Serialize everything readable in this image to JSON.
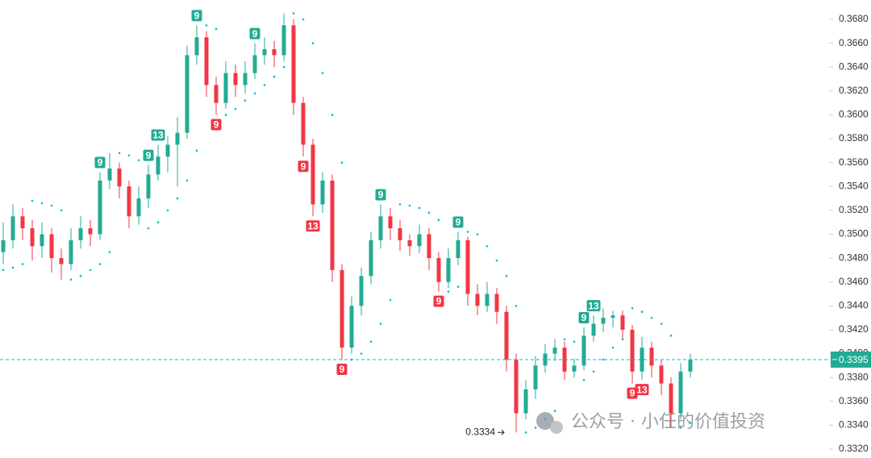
{
  "chart_data": {
    "type": "candlestick",
    "open": [
      0.3485,
      0.3495,
      0.3515,
      0.3505,
      0.349,
      0.35,
      0.348,
      0.3475,
      0.3495,
      0.3505,
      0.35,
      0.3545,
      0.3555,
      0.354,
      0.3515,
      0.353,
      0.355,
      0.3565,
      0.3575,
      0.3585,
      0.365,
      0.3665,
      0.3625,
      0.361,
      0.3635,
      0.3625,
      0.3635,
      0.365,
      0.3655,
      0.365,
      0.3675,
      0.361,
      0.3575,
      0.3525,
      0.3545,
      0.347,
      0.3405,
      0.344,
      0.3465,
      0.3495,
      0.3515,
      0.3505,
      0.3495,
      0.349,
      0.35,
      0.348,
      0.346,
      0.348,
      0.3495,
      0.345,
      0.344,
      0.345,
      0.3435,
      0.3395,
      0.335,
      0.337,
      0.339,
      0.34,
      0.3405,
      0.3385,
      0.339,
      0.3415,
      0.3425,
      0.343,
      0.3432,
      0.342,
      0.3385,
      0.3405,
      0.339,
      0.3375,
      0.335,
      0.3385
    ],
    "high": [
      0.351,
      0.3525,
      0.3522,
      0.3512,
      0.351,
      0.3505,
      0.3488,
      0.3505,
      0.3515,
      0.3512,
      0.3552,
      0.3568,
      0.356,
      0.3545,
      0.354,
      0.3558,
      0.3575,
      0.3582,
      0.3598,
      0.3658,
      0.3675,
      0.367,
      0.3632,
      0.3645,
      0.3642,
      0.3645,
      0.366,
      0.3665,
      0.3662,
      0.3685,
      0.368,
      0.3615,
      0.358,
      0.3552,
      0.355,
      0.3475,
      0.3448,
      0.3472,
      0.3502,
      0.3525,
      0.3522,
      0.3512,
      0.35,
      0.3508,
      0.3505,
      0.3485,
      0.3488,
      0.3502,
      0.3498,
      0.3458,
      0.346,
      0.3455,
      0.344,
      0.34,
      0.3378,
      0.3398,
      0.3408,
      0.3412,
      0.341,
      0.3396,
      0.3422,
      0.3432,
      0.3438,
      0.3436,
      0.3436,
      0.3424,
      0.3414,
      0.341,
      0.3395,
      0.338,
      0.3392,
      0.34
    ],
    "low": [
      0.3475,
      0.3488,
      0.3495,
      0.3478,
      0.348,
      0.3468,
      0.3462,
      0.347,
      0.3488,
      0.349,
      0.3495,
      0.3538,
      0.353,
      0.3505,
      0.3508,
      0.3522,
      0.3545,
      0.3552,
      0.354,
      0.358,
      0.3642,
      0.3615,
      0.36,
      0.3605,
      0.3615,
      0.3618,
      0.363,
      0.3642,
      0.364,
      0.3645,
      0.36,
      0.3565,
      0.3515,
      0.3518,
      0.346,
      0.3395,
      0.34,
      0.3432,
      0.3458,
      0.3488,
      0.3495,
      0.3486,
      0.3482,
      0.3484,
      0.347,
      0.3452,
      0.3455,
      0.3474,
      0.344,
      0.3432,
      0.3435,
      0.3425,
      0.3385,
      0.3334,
      0.3345,
      0.3362,
      0.3384,
      0.3394,
      0.3378,
      0.338,
      0.3386,
      0.341,
      0.3418,
      0.3422,
      0.3412,
      0.3375,
      0.3378,
      0.338,
      0.3365,
      0.3338,
      0.3345,
      0.338
    ],
    "close": [
      0.3495,
      0.3515,
      0.3505,
      0.349,
      0.35,
      0.348,
      0.3475,
      0.3495,
      0.3505,
      0.35,
      0.3545,
      0.3555,
      0.354,
      0.3515,
      0.353,
      0.355,
      0.3565,
      0.3575,
      0.3585,
      0.365,
      0.3665,
      0.3625,
      0.361,
      0.3635,
      0.3625,
      0.3635,
      0.365,
      0.3655,
      0.365,
      0.3675,
      0.361,
      0.3575,
      0.3525,
      0.3545,
      0.347,
      0.3405,
      0.344,
      0.3465,
      0.3495,
      0.3515,
      0.3505,
      0.3495,
      0.349,
      0.35,
      0.348,
      0.346,
      0.348,
      0.3495,
      0.345,
      0.344,
      0.345,
      0.3435,
      0.3395,
      0.335,
      0.337,
      0.339,
      0.34,
      0.3405,
      0.3385,
      0.339,
      0.3415,
      0.3425,
      0.343,
      0.3432,
      0.342,
      0.3385,
      0.3405,
      0.339,
      0.3375,
      0.335,
      0.3385,
      0.3395
    ],
    "sar": [
      0.347,
      0.3472,
      0.3475,
      0.3528,
      0.3526,
      0.3524,
      0.352,
      0.3462,
      0.3465,
      0.347,
      0.3475,
      0.3485,
      0.3568,
      0.3566,
      0.3562,
      0.3505,
      0.351,
      0.352,
      0.353,
      0.3545,
      0.357,
      0.3675,
      0.3672,
      0.36,
      0.3605,
      0.3612,
      0.3618,
      0.3625,
      0.3632,
      0.364,
      0.3685,
      0.368,
      0.366,
      0.3635,
      0.36,
      0.356,
      0.3395,
      0.34,
      0.341,
      0.3425,
      0.3445,
      0.3525,
      0.3524,
      0.3522,
      0.3518,
      0.3512,
      0.3452,
      0.3456,
      0.3502,
      0.35,
      0.349,
      0.3478,
      0.3465,
      0.344,
      0.3334,
      0.3338,
      0.3345,
      0.3352,
      0.3412,
      0.341,
      0.3378,
      0.3385,
      0.3395,
      0.3405,
      0.3412,
      0.3438,
      0.3435,
      0.343,
      0.3425,
      0.3415,
      0.3338,
      0.3342
    ],
    "up_color": "#22ab94",
    "down_color": "#f23645",
    "sar_color": "#00bcd4",
    "td_labels": [
      {
        "text": "9",
        "bar": 10,
        "side": "above"
      },
      {
        "text": "9",
        "bar": 15,
        "side": "above"
      },
      {
        "text": "13",
        "bar": 16,
        "side": "above"
      },
      {
        "text": "9",
        "bar": 20,
        "side": "above"
      },
      {
        "text": "9",
        "bar": 26,
        "side": "above"
      },
      {
        "text": "9",
        "bar": 39,
        "side": "above"
      },
      {
        "text": "9",
        "bar": 47,
        "side": "above"
      },
      {
        "text": "9",
        "bar": 60,
        "side": "above"
      },
      {
        "text": "13",
        "bar": 61,
        "side": "above"
      },
      {
        "text": "9",
        "bar": 22,
        "side": "below"
      },
      {
        "text": "9",
        "bar": 31,
        "side": "below"
      },
      {
        "text": "13",
        "bar": 32,
        "side": "below"
      },
      {
        "text": "9",
        "bar": 35,
        "side": "below"
      },
      {
        "text": "9",
        "bar": 45,
        "side": "below"
      },
      {
        "text": "9",
        "bar": 65,
        "side": "below"
      },
      {
        "text": "13",
        "bar": 66,
        "side": "below"
      }
    ],
    "last_price": 0.3395,
    "min_price": 0.3334,
    "watermark": "公众号 · 小任的价值投资",
    "ylim": [
      0.332,
      0.368
    ],
    "yticks": [
      {
        "value": 0.332,
        "label": "0.3320"
      },
      {
        "value": 0.334,
        "label": "0.3340"
      },
      {
        "value": 0.336,
        "label": "0.3360"
      },
      {
        "value": 0.338,
        "label": "0.3380"
      },
      {
        "value": 0.34,
        "label": "0.3400"
      },
      {
        "value": 0.342,
        "label": "0.3420"
      },
      {
        "value": 0.344,
        "label": "0.3440"
      },
      {
        "value": 0.346,
        "label": "0.3460"
      },
      {
        "value": 0.348,
        "label": "0.3480"
      },
      {
        "value": 0.35,
        "label": "0.3500"
      },
      {
        "value": 0.352,
        "label": "0.3520"
      },
      {
        "value": 0.354,
        "label": "0.3540"
      },
      {
        "value": 0.356,
        "label": "0.3560"
      },
      {
        "value": 0.358,
        "label": "0.3580"
      },
      {
        "value": 0.36,
        "label": "0.3600"
      },
      {
        "value": 0.362,
        "label": "0.3620"
      },
      {
        "value": 0.364,
        "label": "0.3640"
      },
      {
        "value": 0.366,
        "label": "0.3660"
      },
      {
        "value": 0.368,
        "label": "0.3680"
      }
    ],
    "grid": false
  }
}
